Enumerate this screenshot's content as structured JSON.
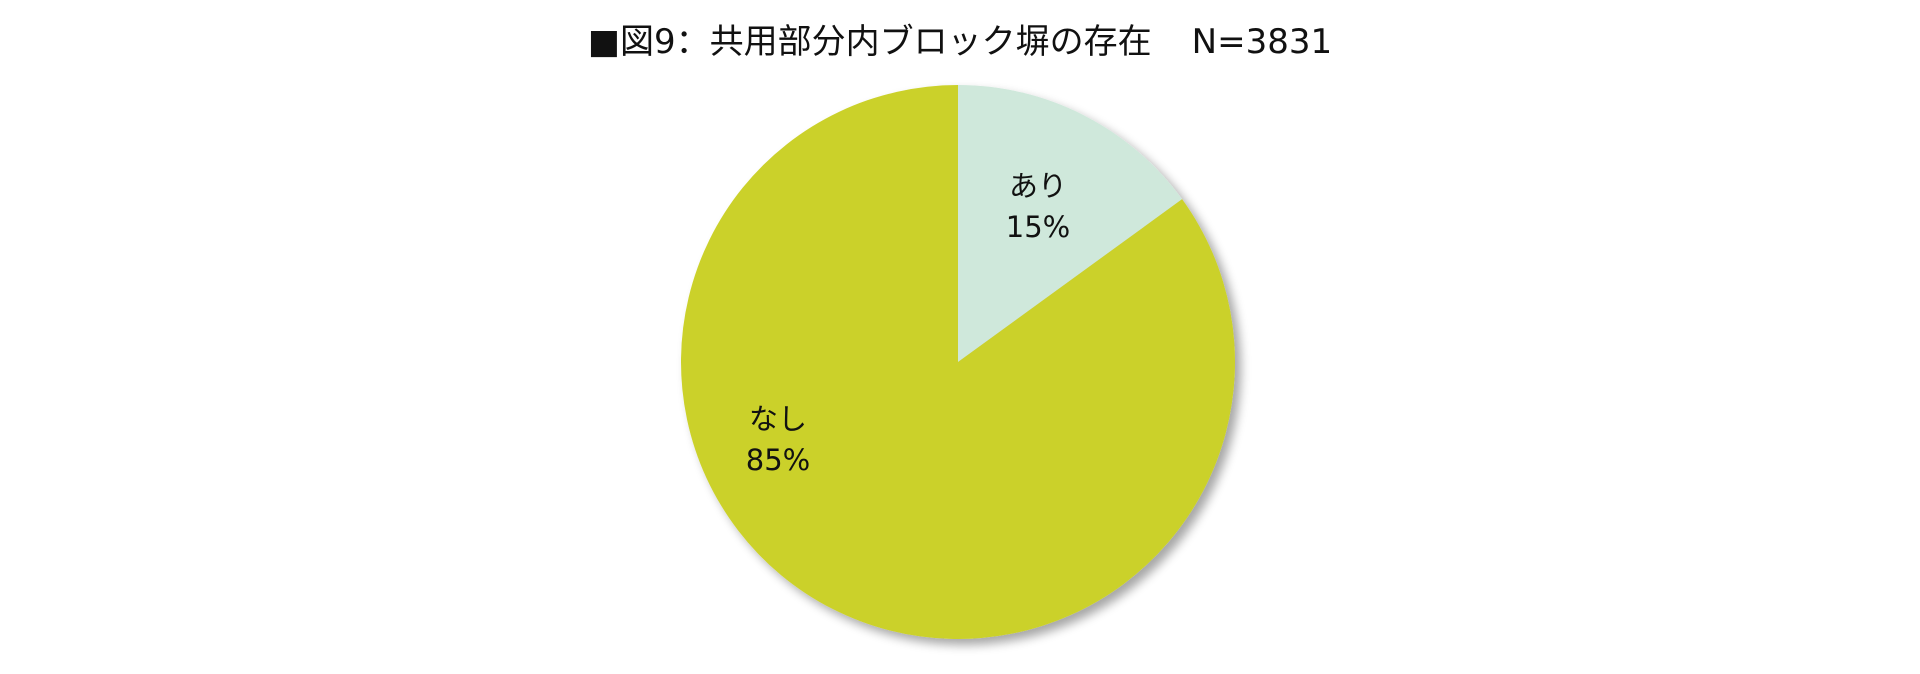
{
  "chart_data": {
    "type": "pie",
    "title": "■図9：共用部分内ブロック塀の存在",
    "n_label": "N=3831",
    "start": "12 o'clock, clockwise",
    "slices": [
      {
        "label": "あり",
        "value": 15,
        "value_label": "15%",
        "color": "#cfe8db"
      },
      {
        "label": "なし",
        "value": 85,
        "value_label": "85%",
        "color": "#cbd12b"
      }
    ],
    "legend": "none",
    "shadow": true
  }
}
